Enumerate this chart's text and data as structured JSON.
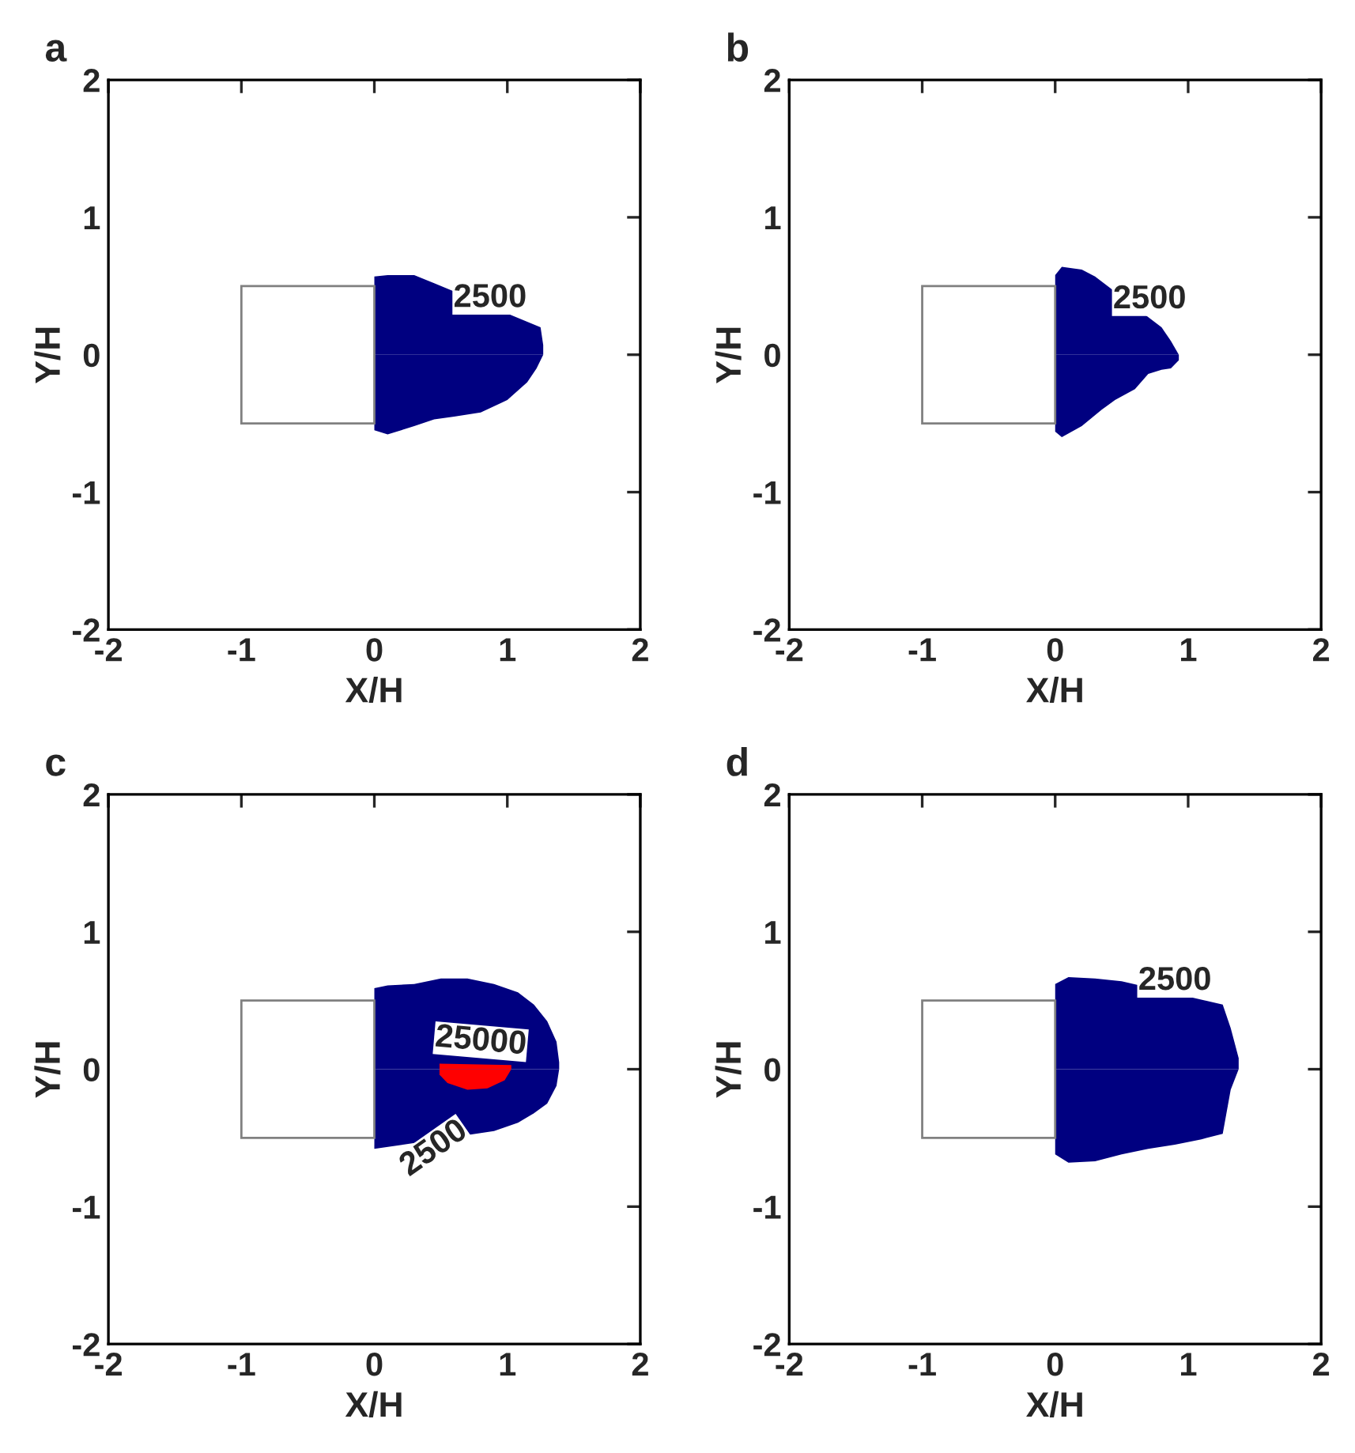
{
  "chart_data": [
    {
      "type": "area",
      "title": "a",
      "xlabel": "X/H",
      "ylabel": "Y/H",
      "xlim": [
        -2,
        2
      ],
      "ylim": [
        -2,
        2
      ],
      "xticks": [
        -2,
        -1,
        0,
        1,
        2
      ],
      "yticks": [
        -2,
        -1,
        0,
        1,
        2
      ],
      "grid": false,
      "legend": false,
      "series": [
        {
          "color": "#000080",
          "x": [
            0,
            0.1,
            0.3,
            0.45,
            1.25,
            1.27
          ],
          "values": [
            0.57,
            0.58,
            0.58,
            0.52,
            0.2,
            0.07
          ]
        },
        {
          "color": "#000080",
          "x": [
            0,
            0.1,
            0.3,
            0.45,
            0.6,
            0.8,
            1.0,
            1.15,
            1.22,
            1.27
          ],
          "values": [
            -0.55,
            -0.58,
            -0.52,
            -0.47,
            -0.45,
            -0.42,
            -0.33,
            -0.2,
            -0.1,
            0.0
          ]
        }
      ],
      "annotations": [
        "2500"
      ]
    },
    {
      "type": "area",
      "title": "b",
      "xlabel": "X/H",
      "ylabel": "Y/H",
      "xlim": [
        -2,
        2
      ],
      "ylim": [
        -2,
        2
      ],
      "xticks": [
        -2,
        -1,
        0,
        1,
        2
      ],
      "yticks": [
        -2,
        -1,
        0,
        1,
        2
      ],
      "grid": false,
      "legend": false,
      "series": [
        {
          "color": "#000080",
          "x": [
            0,
            0.05,
            0.2,
            0.3,
            0.8,
            0.87,
            0.93
          ],
          "values": [
            0.58,
            0.64,
            0.62,
            0.57,
            0.2,
            0.1,
            0.0
          ]
        },
        {
          "color": "#000080",
          "x": [
            0,
            0.05,
            0.2,
            0.35,
            0.45,
            0.6,
            0.7,
            0.8,
            0.87,
            0.93
          ],
          "values": [
            -0.56,
            -0.6,
            -0.52,
            -0.4,
            -0.33,
            -0.25,
            -0.14,
            -0.11,
            -0.1,
            -0.04
          ]
        }
      ],
      "annotations": [
        "2500"
      ]
    },
    {
      "type": "area",
      "title": "c",
      "xlabel": "X/H",
      "ylabel": "Y/H",
      "xlim": [
        -2,
        2
      ],
      "ylim": [
        -2,
        2
      ],
      "xticks": [
        -2,
        -1,
        0,
        1,
        2
      ],
      "yticks": [
        -2,
        -1,
        0,
        1,
        2
      ],
      "grid": false,
      "legend": false,
      "series": [
        {
          "color": "#000080",
          "x": [
            0,
            0.1,
            0.3,
            0.5,
            0.7,
            0.9,
            1.08,
            1.2,
            1.3,
            1.37,
            1.39
          ],
          "values": [
            0.59,
            0.61,
            0.62,
            0.66,
            0.66,
            0.62,
            0.56,
            0.47,
            0.35,
            0.2,
            0.05
          ]
        },
        {
          "color": "#000080",
          "x": [
            0,
            0.9,
            1.08,
            1.2,
            1.3,
            1.37,
            1.39
          ],
          "values": [
            -0.58,
            -0.45,
            -0.39,
            -0.32,
            -0.25,
            -0.12,
            0.0
          ]
        },
        {
          "color": "#ff0000",
          "x": [
            0.49,
            1.03
          ],
          "values": [
            0.04,
            0.03
          ]
        },
        {
          "color": "#ff0000",
          "x": [
            0.49,
            0.55,
            0.7,
            0.85,
            0.98,
            1.03
          ],
          "values": [
            -0.04,
            -0.1,
            -0.15,
            -0.14,
            -0.08,
            0.0
          ]
        }
      ],
      "annotations": [
        "25000",
        "2500"
      ]
    },
    {
      "type": "area",
      "title": "d",
      "xlabel": "X/H",
      "ylabel": "Y/H",
      "xlim": [
        -2,
        2
      ],
      "ylim": [
        -2,
        2
      ],
      "xticks": [
        -2,
        -1,
        0,
        1,
        2
      ],
      "yticks": [
        -2,
        -1,
        0,
        1,
        2
      ],
      "grid": false,
      "legend": false,
      "series": [
        {
          "color": "#000080",
          "x": [
            0,
            0.1,
            0.3,
            0.5,
            1.26,
            1.32,
            1.38
          ],
          "values": [
            0.62,
            0.67,
            0.66,
            0.64,
            0.47,
            0.3,
            0.08
          ]
        },
        {
          "color": "#000080",
          "x": [
            0,
            0.1,
            0.3,
            0.5,
            0.7,
            0.9,
            1.1,
            1.26,
            1.32,
            1.38
          ],
          "values": [
            -0.62,
            -0.68,
            -0.67,
            -0.62,
            -0.58,
            -0.55,
            -0.51,
            -0.47,
            -0.15,
            0.0
          ]
        }
      ],
      "annotations": [
        "2500"
      ]
    }
  ]
}
